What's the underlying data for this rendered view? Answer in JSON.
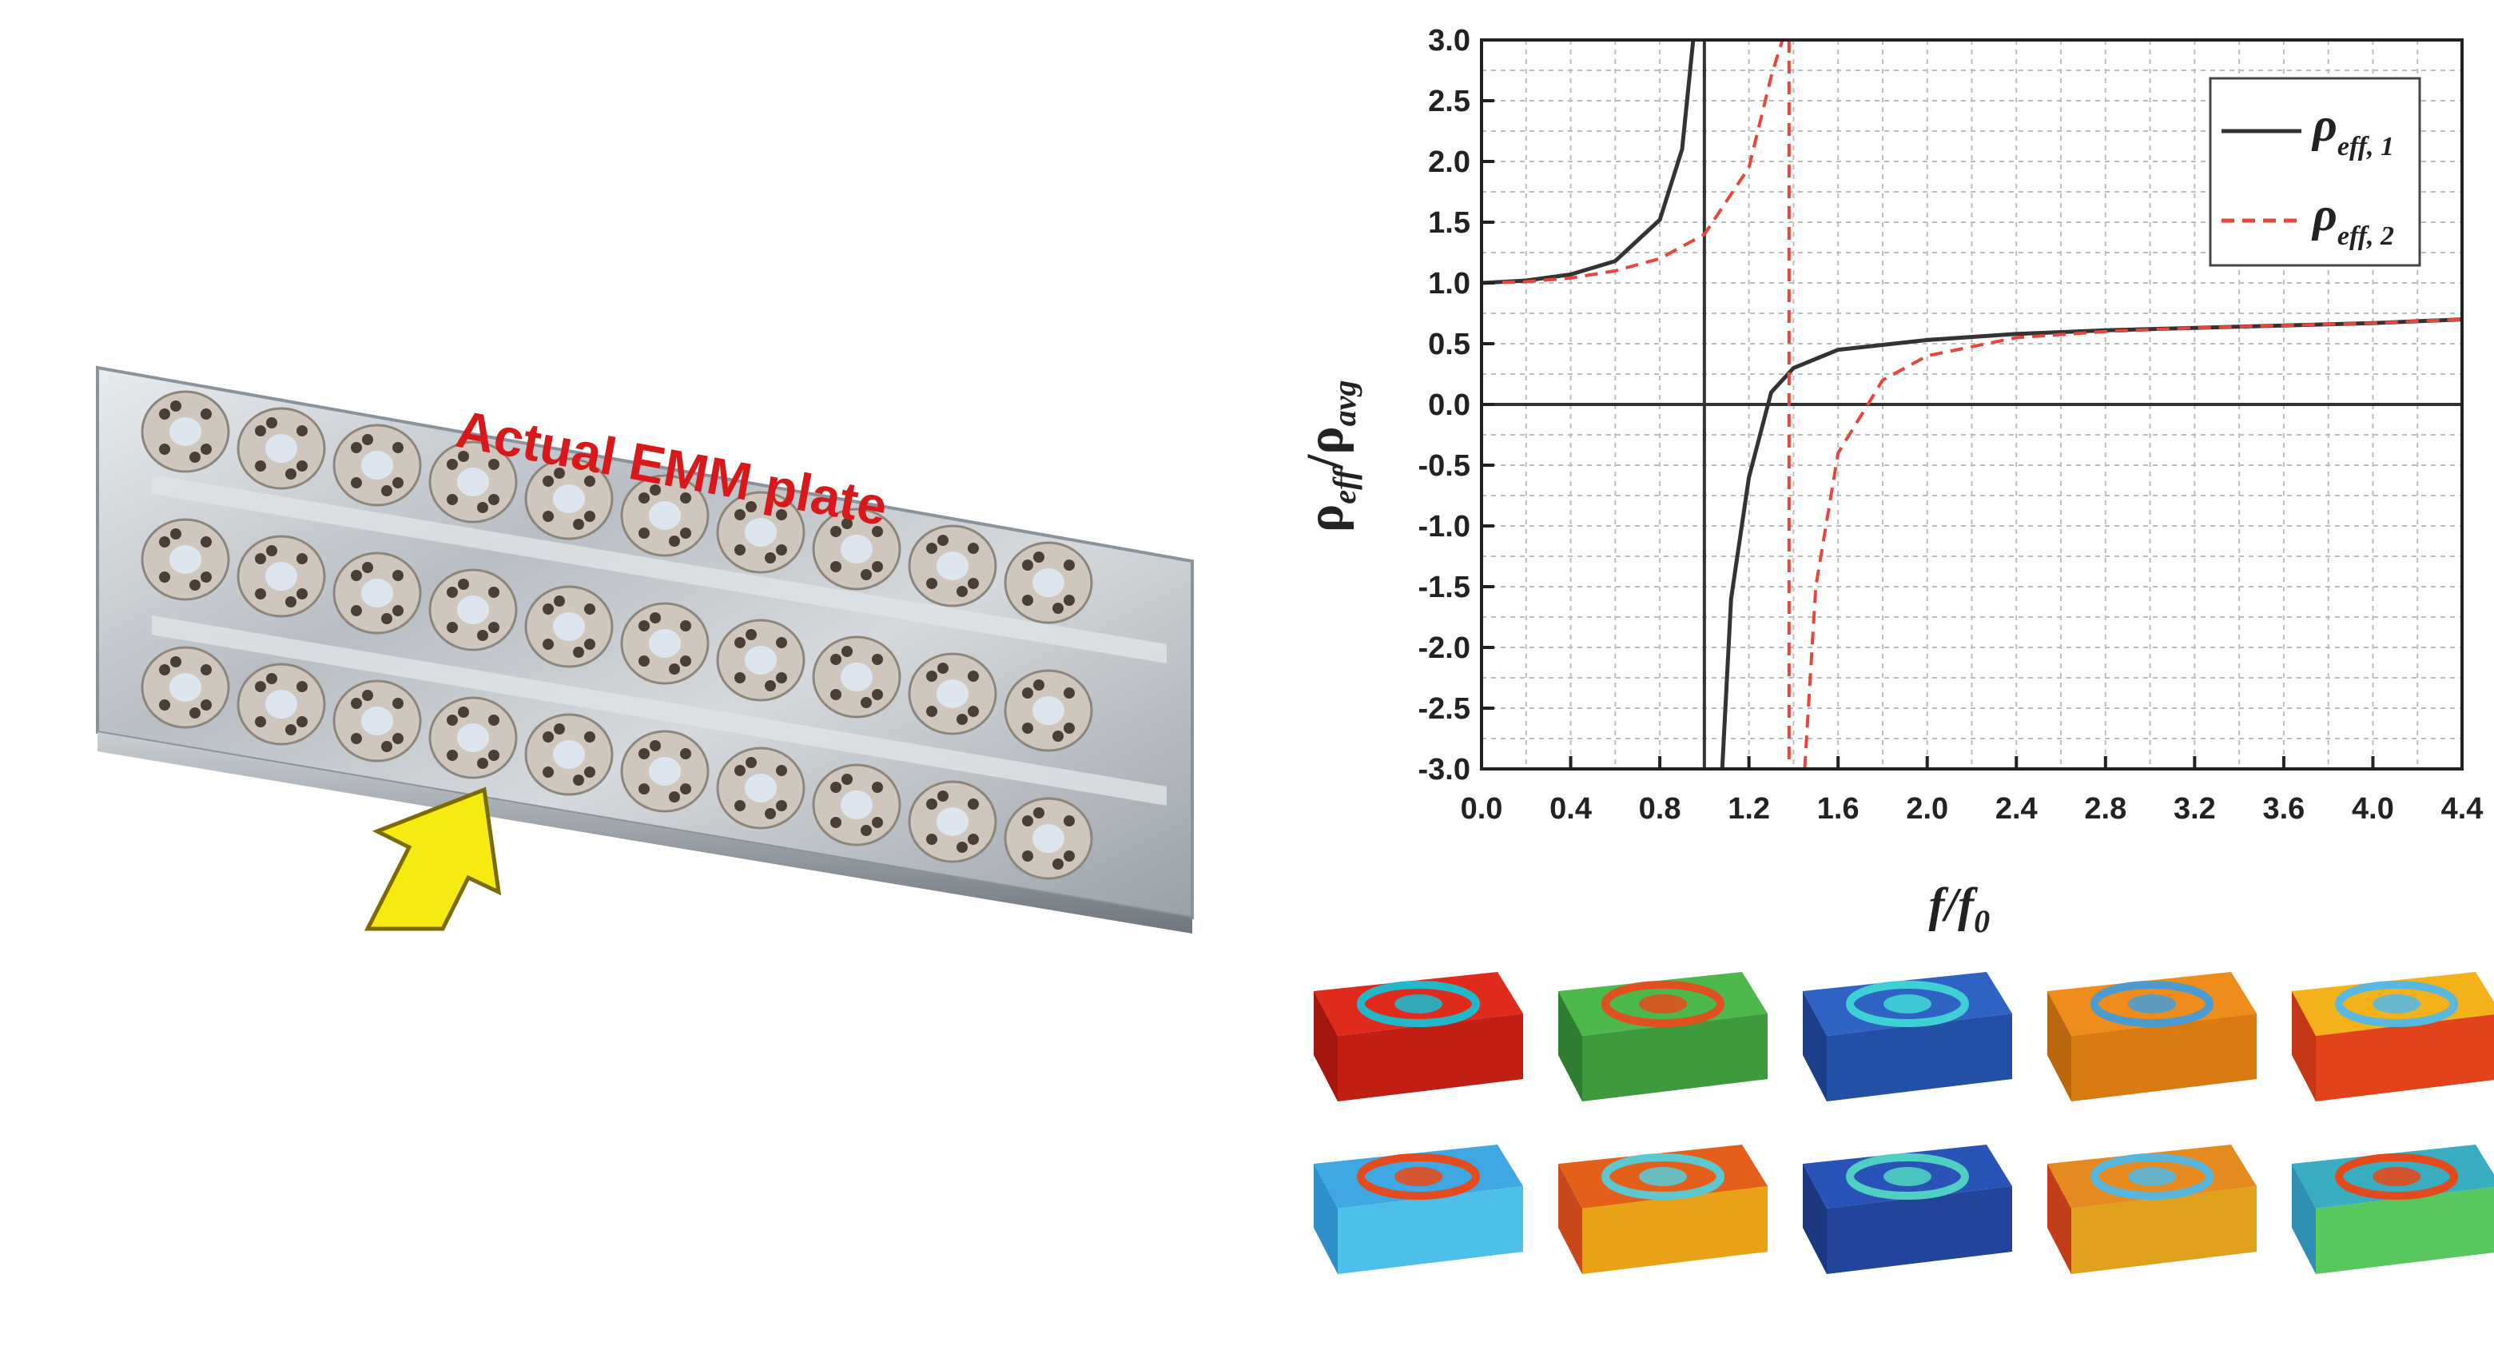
{
  "photo": {
    "caption": "Actual EMM plate",
    "caption_color": "#d7191c",
    "arrow_color": "#f7ea10",
    "plate_rows": 3,
    "plate_columns": 10
  },
  "chart_data": {
    "type": "line",
    "xlabel": "f/f",
    "xlabel_sub": "0",
    "ylabel": "ρ",
    "ylabel_sub1": "eff",
    "ylabel_sep": "/ρ",
    "ylabel_sub2": "avg",
    "xlim": [
      0.0,
      4.4
    ],
    "ylim": [
      -3.0,
      3.0
    ],
    "x_ticks": [
      "0.0",
      "0.4",
      "0.8",
      "1.2",
      "1.6",
      "2.0",
      "2.4",
      "2.8",
      "3.2",
      "3.6",
      "4.0",
      "4.4"
    ],
    "y_ticks": [
      "3.0",
      "2.5",
      "2.0",
      "1.5",
      "1.0",
      "0.5",
      "0.0",
      "-0.5",
      "-1.0",
      "-1.5",
      "-2.0",
      "-2.5",
      "-3.0"
    ],
    "grid": true,
    "legend_position": "top-right",
    "reference_lines": {
      "y": 0.0,
      "x": 1.0
    },
    "series": [
      {
        "name": "ρ",
        "name_sub": "eff, 1",
        "color": "#333333",
        "style": "solid",
        "resonance": 1.0,
        "x": [
          0.0,
          0.2,
          0.4,
          0.6,
          0.8,
          0.9,
          0.95,
          1.08,
          1.12,
          1.2,
          1.3,
          1.4,
          1.6,
          2.0,
          2.4,
          2.8,
          3.2,
          3.6,
          4.0,
          4.4
        ],
        "y": [
          1.0,
          1.02,
          1.07,
          1.18,
          1.52,
          2.1,
          3.0,
          -3.0,
          -1.6,
          -0.6,
          0.1,
          0.3,
          0.45,
          0.53,
          0.58,
          0.61,
          0.63,
          0.65,
          0.67,
          0.7
        ]
      },
      {
        "name": "ρ",
        "name_sub": "eff, 2",
        "color": "#e8453c",
        "style": "dashed",
        "resonance": 1.38,
        "x": [
          0.0,
          0.2,
          0.4,
          0.6,
          0.8,
          1.0,
          1.2,
          1.3,
          1.35,
          1.45,
          1.5,
          1.6,
          1.8,
          2.0,
          2.4,
          2.8,
          3.2,
          3.6,
          4.0,
          4.4
        ],
        "y": [
          1.0,
          1.01,
          1.04,
          1.1,
          1.2,
          1.4,
          1.95,
          2.7,
          3.0,
          -3.0,
          -1.5,
          -0.4,
          0.2,
          0.4,
          0.55,
          0.6,
          0.63,
          0.65,
          0.67,
          0.7
        ]
      }
    ]
  },
  "mode_shapes": {
    "rows": [
      [
        {
          "top": "#e02a1c",
          "front": "#c11f14",
          "side": "#a5170e",
          "center": "#22b7c9"
        },
        {
          "top": "#4db84b",
          "front": "#3c9a3c",
          "side": "#2f7d30",
          "center": "#e0501f"
        },
        {
          "top": "#2e63c4",
          "front": "#244fa6",
          "side": "#1b3f88",
          "center": "#3fd0d5"
        },
        {
          "top": "#ee8c1c",
          "front": "#d97b10",
          "side": "#b9660c",
          "center": "#4b9bd0"
        },
        {
          "top": "#f4b21a",
          "front": "#e2431b",
          "side": "#c53716",
          "center": "#58b8e0"
        }
      ],
      [
        {
          "top": "#3fa8e3",
          "front": "#4cc0ea",
          "side": "#2d8ec8",
          "center": "#e34b1e"
        },
        {
          "top": "#e4601a",
          "front": "#e9a218",
          "side": "#c9481a",
          "center": "#5cc8d0"
        },
        {
          "top": "#2a53b8",
          "front": "#22459b",
          "side": "#1a3780",
          "center": "#4fd0c2"
        },
        {
          "top": "#e58a1e",
          "front": "#e0a21c",
          "side": "#c23e19",
          "center": "#58b6dd"
        },
        {
          "top": "#3aaec1",
          "front": "#58c85e",
          "side": "#2f8fb3",
          "center": "#e24a1d"
        }
      ]
    ]
  }
}
